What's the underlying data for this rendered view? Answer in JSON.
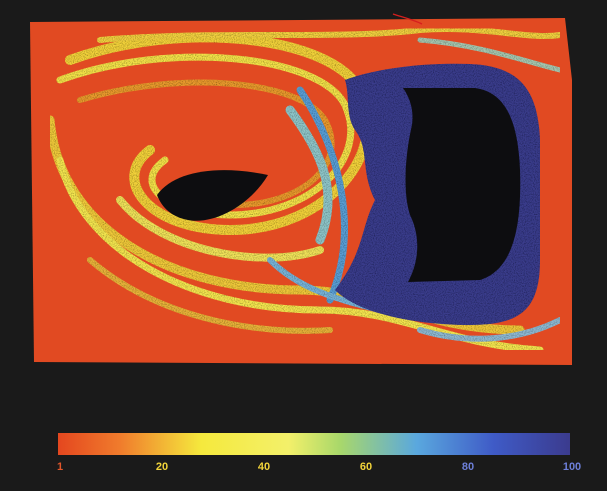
{
  "colorbar": {
    "ticks": [
      "1",
      "20",
      "40",
      "60",
      "80",
      "100"
    ],
    "colors": {
      "low": "#e4471f",
      "orange": "#f07b2c",
      "yellow": "#f5e93d",
      "green": "#a9d86a",
      "light_blue": "#5aa8de",
      "blue": "#3f5bc7",
      "high": "#3b3b8e",
      "tick_low": "#e0552a",
      "tick_mid": "#f2d43a",
      "tick_high": "#6d7fd8"
    }
  },
  "field": {
    "background": "#e14a22",
    "cavity_color": "#0d0d10",
    "dark_region": "#3b3c8c"
  }
}
